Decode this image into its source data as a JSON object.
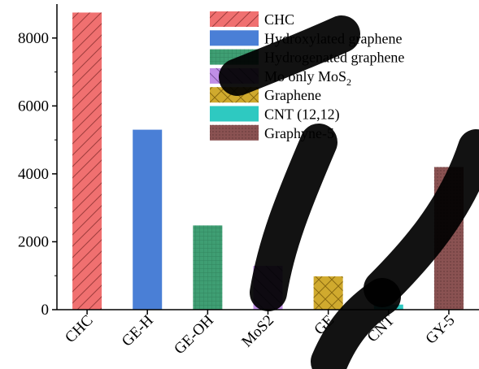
{
  "chart_data": {
    "type": "bar",
    "categories": [
      "CHC",
      "GE-H",
      "GE-OH",
      "MoS2",
      "GE",
      "CNT",
      "GY-5"
    ],
    "values": [
      8750,
      5300,
      2480,
      1290,
      980,
      150,
      4200
    ],
    "ylim": [
      0,
      9000
    ],
    "yticks": [
      0,
      2000,
      4000,
      6000,
      8000
    ],
    "ytick_labels": [
      "0",
      "2000",
      "4000",
      "6000",
      "8000"
    ],
    "xlabel": "",
    "ylabel": "",
    "grid": false,
    "legend_position": "top-center",
    "series": [
      {
        "name": "CHC",
        "color": "#f07070",
        "hatch": "diagonal"
      },
      {
        "name": "Hydroxylated graphene",
        "color": "#4a7fd6",
        "hatch": "none"
      },
      {
        "name": "Hydrogenated graphene",
        "color": "#3f9e73",
        "hatch": "grid"
      },
      {
        "name": "Mo only MoS2",
        "color": "#c08ee6",
        "hatch": "back-diagonal"
      },
      {
        "name": "Graphene",
        "color": "#d0aa2e",
        "hatch": "cross"
      },
      {
        "name": "CNT (12,12)",
        "color": "#2ec9c1",
        "hatch": "none"
      },
      {
        "name": "Graphyne-5",
        "color": "#8a5252",
        "hatch": "dots"
      }
    ]
  }
}
